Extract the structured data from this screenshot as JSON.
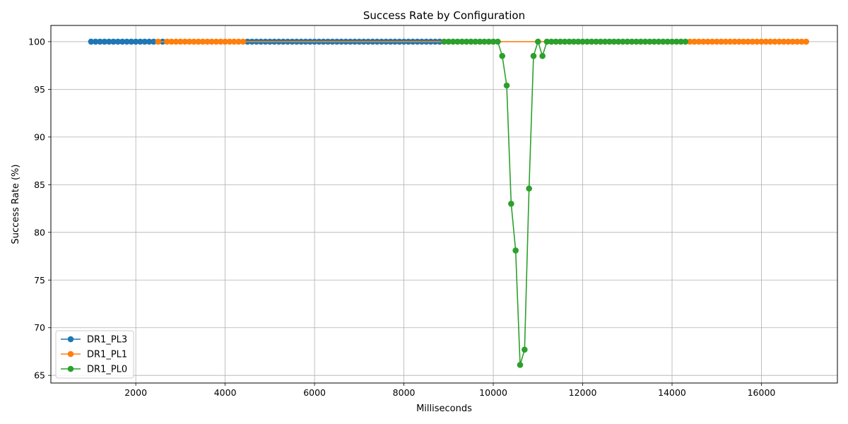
{
  "chart_data": {
    "type": "line",
    "title": "Success Rate by Configuration",
    "xlabel": "Milliseconds",
    "ylabel": "Success Rate (%)",
    "xlim": [
      100,
      17700
    ],
    "ylim": [
      64.2,
      101.7
    ],
    "xticks": [
      2000,
      4000,
      6000,
      8000,
      10000,
      12000,
      14000,
      16000
    ],
    "yticks": [
      65,
      70,
      75,
      80,
      85,
      90,
      95,
      100
    ],
    "grid": true,
    "legend_position": "lower-left",
    "series": [
      {
        "name": "DR1_PL3",
        "color": "#1f77b4",
        "segments": [
          {
            "x_start": 1000,
            "x_end": 2400,
            "step": 100,
            "y": 100
          },
          {
            "x_start": 2600,
            "x_end": 2600,
            "step": 100,
            "y": 100
          },
          {
            "x_start": 4500,
            "x_end": 8800,
            "step": 100,
            "y": 100
          }
        ]
      },
      {
        "name": "DR1_PL1",
        "color": "#ff7f0e",
        "segments": [
          {
            "x_start": 2500,
            "x_end": 2500,
            "step": 100,
            "y": 100
          },
          {
            "x_start": 2700,
            "x_end": 4400,
            "step": 100,
            "y": 100
          },
          {
            "x_start": 14400,
            "x_end": 17000,
            "step": 100,
            "y": 100
          }
        ]
      },
      {
        "name": "DR1_PL0",
        "color": "#2ca02c",
        "points": [
          [
            8900,
            100
          ],
          [
            9000,
            100
          ],
          [
            9100,
            100
          ],
          [
            9200,
            100
          ],
          [
            9300,
            100
          ],
          [
            9400,
            100
          ],
          [
            9500,
            100
          ],
          [
            9600,
            100
          ],
          [
            9700,
            100
          ],
          [
            9800,
            100
          ],
          [
            9900,
            100
          ],
          [
            10000,
            100
          ],
          [
            10100,
            100
          ],
          [
            10200,
            98.5
          ],
          [
            10300,
            95.4
          ],
          [
            10400,
            83.0
          ],
          [
            10500,
            78.1
          ],
          [
            10600,
            66.1
          ],
          [
            10700,
            67.7
          ],
          [
            10800,
            84.6
          ],
          [
            10900,
            98.5
          ],
          [
            11000,
            100
          ],
          [
            11100,
            98.5
          ],
          [
            11200,
            100
          ],
          [
            11300,
            100
          ],
          [
            11400,
            100
          ],
          [
            11500,
            100
          ],
          [
            11600,
            100
          ],
          [
            11700,
            100
          ],
          [
            11800,
            100
          ],
          [
            11900,
            100
          ],
          [
            12000,
            100
          ],
          [
            12100,
            100
          ],
          [
            12200,
            100
          ],
          [
            12300,
            100
          ],
          [
            12400,
            100
          ],
          [
            12500,
            100
          ],
          [
            12600,
            100
          ],
          [
            12700,
            100
          ],
          [
            12800,
            100
          ],
          [
            12900,
            100
          ],
          [
            13000,
            100
          ],
          [
            13100,
            100
          ],
          [
            13200,
            100
          ],
          [
            13300,
            100
          ],
          [
            13400,
            100
          ],
          [
            13500,
            100
          ],
          [
            13600,
            100
          ],
          [
            13700,
            100
          ],
          [
            13800,
            100
          ],
          [
            13900,
            100
          ],
          [
            14000,
            100
          ],
          [
            14100,
            100
          ],
          [
            14200,
            100
          ],
          [
            14300,
            100
          ]
        ]
      }
    ]
  }
}
